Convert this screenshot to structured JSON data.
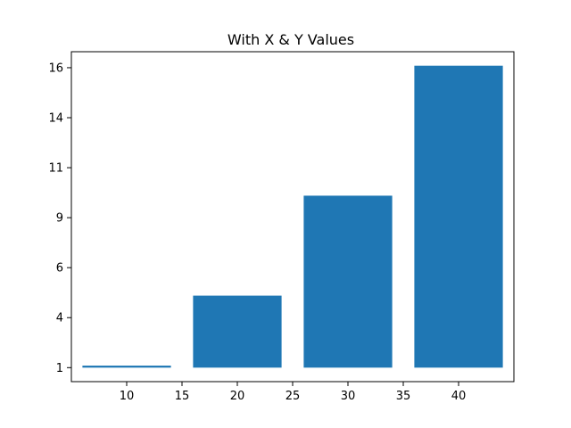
{
  "chart_data": {
    "type": "bar",
    "title": "With X & Y Values",
    "xlabel": "",
    "ylabel": "",
    "x": [
      10,
      20,
      30,
      40
    ],
    "values": [
      1.1,
      4.6,
      9.6,
      16.1
    ],
    "bar_width": 8,
    "base": 1,
    "xlim": [
      5,
      45
    ],
    "ylim": [
      0.3,
      16.8
    ],
    "xticks": [
      10,
      15,
      20,
      25,
      30,
      35,
      40
    ],
    "xtick_labels": [
      "10",
      "15",
      "20",
      "25",
      "30",
      "35",
      "40"
    ],
    "yticks": [
      1,
      3.5,
      6,
      8.5,
      11,
      13.5,
      16
    ],
    "ytick_labels": [
      "1",
      "4",
      "6",
      "9",
      "11",
      "14",
      "16"
    ],
    "bar_color": "#1f77b4",
    "grid": false,
    "legend": "none"
  }
}
